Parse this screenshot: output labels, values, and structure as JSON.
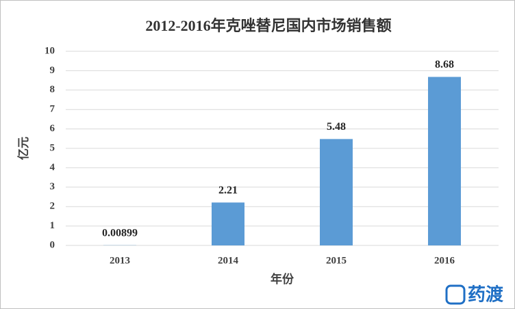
{
  "chart_data": {
    "type": "bar",
    "title": "2012-2016年克唑替尼国内市场销售额",
    "x_label": "年份",
    "y_label": "亿元",
    "categories": [
      "2013",
      "2014",
      "2015",
      "2016"
    ],
    "values": [
      0.00899,
      2.21,
      5.48,
      8.68
    ],
    "color": "#5b9bd5",
    "ylim": [
      0,
      10
    ],
    "yticks": [
      0,
      1,
      2,
      3,
      4,
      5,
      6,
      7,
      8,
      9,
      10
    ],
    "grid": true
  },
  "watermark": "药渡"
}
